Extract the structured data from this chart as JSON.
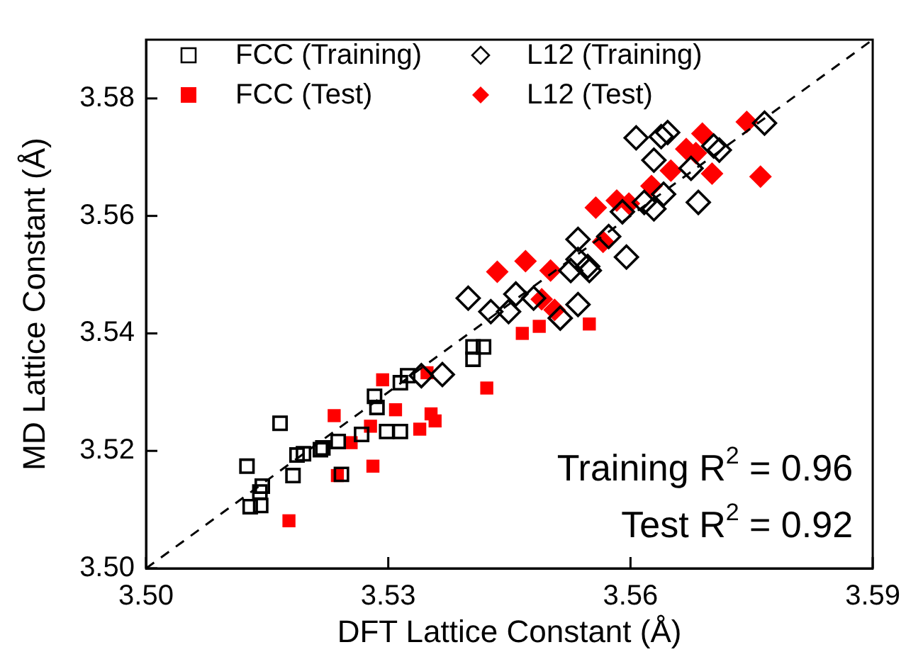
{
  "chart_data": {
    "type": "scatter",
    "xlabel": "DFT Lattice Constant (Å)",
    "ylabel": "MD Lattice Constant (Å)",
    "xlim": [
      3.5,
      3.59
    ],
    "xticks": [
      {
        "value": 3.5,
        "label": "3.50"
      },
      3.53,
      3.56,
      3.59
    ],
    "ylim": [
      3.5,
      3.59
    ],
    "yticks": [
      {
        "value": 3.5,
        "label": "3.50"
      },
      3.52,
      3.54,
      3.56,
      3.58
    ],
    "grid": false,
    "legend": "top left",
    "line_style": "dashed",
    "annotations": [
      "Training R$^{2}$ = 0.96",
      "Test R$^{2}$ = 0.92"
    ],
    "series": [
      {
        "name": "FCC (Training)",
        "marker": "square",
        "color": "#000000",
        "x": [
          3.5166,
          3.5125,
          3.5144,
          3.5141,
          3.5129,
          3.5142,
          3.5182,
          3.5187,
          3.5195,
          3.5216,
          3.5219,
          3.5238,
          3.5242,
          3.5267,
          3.5283,
          3.5286,
          3.5298,
          3.5315,
          3.5315,
          3.5324,
          3.5405,
          3.5418,
          3.5405
        ],
        "values": [
          3.5247,
          3.5174,
          3.514,
          3.513,
          3.5105,
          3.5107,
          3.5158,
          3.5193,
          3.5195,
          3.5202,
          3.5205,
          3.5216,
          3.516,
          3.5228,
          3.5293,
          3.5274,
          3.5233,
          3.5233,
          3.5316,
          3.5328,
          3.5377,
          3.5377,
          3.5356
        ]
      },
      {
        "name": "L12 (Training)",
        "marker": "diamond",
        "color": "#000000",
        "x": [
          3.5607,
          3.5638,
          3.5646,
          3.5629,
          3.5684,
          3.5766,
          3.571,
          3.5703,
          3.5675,
          3.5629,
          3.5641,
          3.5617,
          3.5535,
          3.5573,
          3.559,
          3.5595,
          3.5547,
          3.5535,
          3.5526,
          3.5549,
          3.548,
          3.5458,
          3.5449,
          3.5535,
          3.5513,
          3.5427,
          3.5399,
          3.5367,
          3.5341
        ],
        "values": [
          3.5733,
          3.5735,
          3.5742,
          3.5695,
          3.5623,
          3.5758,
          3.5712,
          3.5719,
          3.5681,
          3.5612,
          3.5637,
          3.5623,
          3.556,
          3.5565,
          3.5607,
          3.553,
          3.5514,
          3.5526,
          3.5507,
          3.5507,
          3.546,
          3.5467,
          3.5437,
          3.5449,
          3.5426,
          3.5437,
          3.546,
          3.533,
          3.5328
        ]
      },
      {
        "name": "FCC (Test)",
        "marker": "square",
        "color": "#ff0000",
        "x": [
          3.5233,
          3.5309,
          3.5278,
          3.5254,
          3.5237,
          3.5281,
          3.5177,
          3.5293,
          3.5348,
          3.5353,
          3.5358,
          3.5339,
          3.5422,
          3.5466,
          3.5487,
          3.5549
        ],
        "values": [
          3.526,
          3.527,
          3.5242,
          3.5214,
          3.5158,
          3.5174,
          3.5081,
          3.5321,
          3.5333,
          3.5263,
          3.5251,
          3.5237,
          3.5307,
          3.54,
          3.5412,
          3.5416
        ]
      },
      {
        "name": "L12 (Test)",
        "marker": "diamond",
        "color": "#ff0000",
        "x": [
          3.5435,
          3.547,
          3.5501,
          3.549,
          3.5506,
          3.5557,
          3.5583,
          3.5598,
          3.5566,
          3.5626,
          3.565,
          3.5669,
          3.5681,
          3.5689,
          3.5701,
          3.5744,
          3.5761
        ],
        "values": [
          3.5505,
          3.5523,
          3.5507,
          3.5458,
          3.544,
          3.5614,
          3.5626,
          3.5621,
          3.5556,
          3.5651,
          3.5677,
          3.5714,
          3.5707,
          3.574,
          3.5672,
          3.576,
          3.5667
        ]
      },
      {
        "type": "line",
        "color": "#000000",
        "x": [
          3.5,
          3.59
        ],
        "values": [
          3.5,
          3.59
        ]
      }
    ]
  }
}
